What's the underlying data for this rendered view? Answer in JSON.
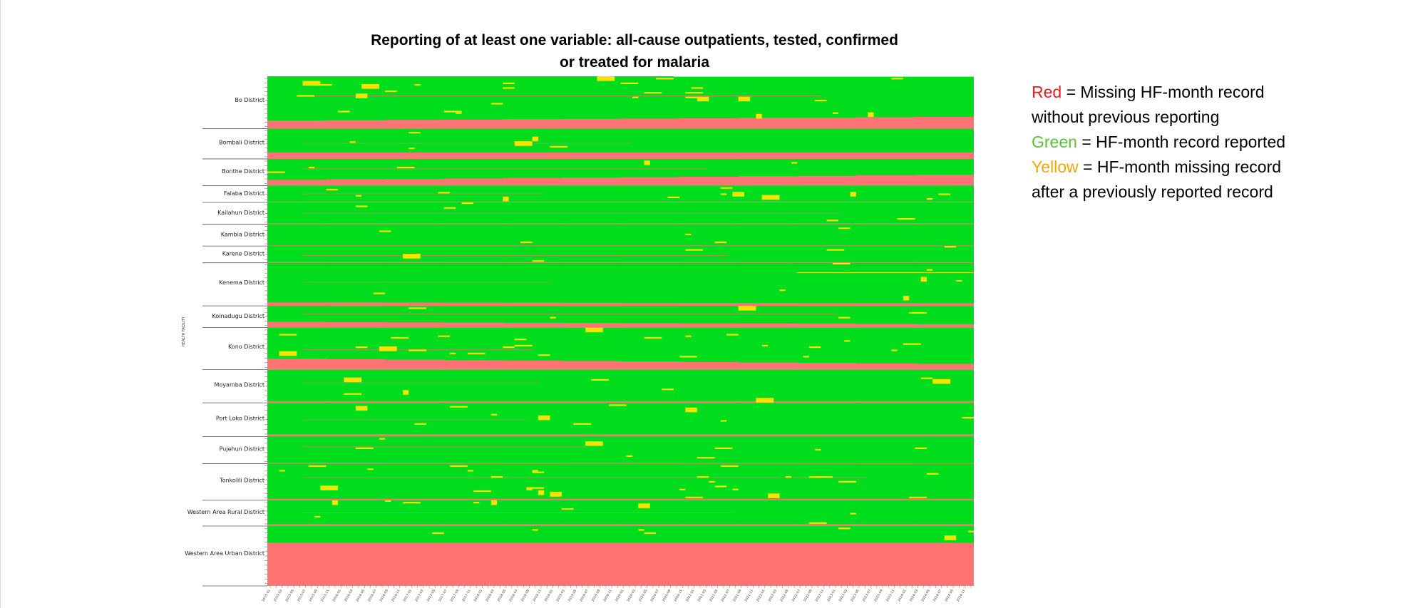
{
  "chart_data": {
    "type": "heatmap",
    "title_lines": [
      "Reporting of at least one variable: all-cause outpatients, tested, confirmed",
      "or treated for malaria"
    ],
    "ylabel": "HEALTH FACILITY",
    "colors": {
      "missing_no_previous": "#ff7375",
      "reported": "#00dd1c",
      "missing_after_previous": "#f5e400"
    },
    "x_start_month": "2015-01",
    "x_end_month": "2024-12",
    "districts": [
      {
        "name": "Bo District",
        "share": 0.106,
        "red_start": 0.155,
        "red_end": 0.225,
        "yellow": 0.08
      },
      {
        "name": "Bombali District",
        "share": 0.061,
        "red_start": 0.215,
        "red_end": 0.215,
        "yellow": 0.03
      },
      {
        "name": "Bonthe District",
        "share": 0.054,
        "red_start": 0.215,
        "red_end": 0.4,
        "yellow": 0.04
      },
      {
        "name": "Falaba District",
        "share": 0.034,
        "red_start": 0.055,
        "red_end": 0.055,
        "yellow": 0.09
      },
      {
        "name": "Kailahun District",
        "share": 0.044,
        "red_start": 0.04,
        "red_end": 0.04,
        "yellow": 0.03
      },
      {
        "name": "Kambia District",
        "share": 0.044,
        "red_start": 0.02,
        "red_end": 0.02,
        "yellow": 0.03
      },
      {
        "name": "Karene District",
        "share": 0.034,
        "red_start": 0.05,
        "red_end": 0.035,
        "yellow": 0.04
      },
      {
        "name": "Kenema District",
        "share": 0.087,
        "red_start": 0.08,
        "red_end": 0.06,
        "yellow": 0.02
      },
      {
        "name": "Koinadugu District",
        "share": 0.044,
        "red_start": 0.26,
        "red_end": 0.16,
        "yellow": 0.04
      },
      {
        "name": "Kono District",
        "share": 0.085,
        "red_start": 0.26,
        "red_end": 0.14,
        "yellow": 0.09
      },
      {
        "name": "Moyamba District",
        "share": 0.067,
        "red_start": 0.05,
        "red_end": 0.05,
        "yellow": 0.03
      },
      {
        "name": "Port Loko District",
        "share": 0.068,
        "red_start": 0.07,
        "red_end": 0.07,
        "yellow": 0.04
      },
      {
        "name": "Pujehun District",
        "share": 0.055,
        "red_start": 0.04,
        "red_end": 0.02,
        "yellow": 0.04
      },
      {
        "name": "Tonkolili District",
        "share": 0.074,
        "red_start": 0.04,
        "red_end": 0.04,
        "yellow": 0.09
      },
      {
        "name": "Western Area Rural District",
        "share": 0.052,
        "red_start": 0.08,
        "red_end": 0.08,
        "yellow": 0.05
      },
      {
        "name": "Western Area Urban District",
        "share": 0.121,
        "red_start": 0.72,
        "red_end": 0.72,
        "yellow": 0.05
      }
    ]
  },
  "legend": {
    "red_key": "Red",
    "red_text_1": " = Missing HF-month record",
    "red_text_2": "without previous reporting",
    "green_key": "Green",
    "green_text": " = HF-month record reported",
    "yellow_key": "Yellow",
    "yellow_text_1": " = HF-month missing record",
    "yellow_text_2": "after a previously reported record"
  }
}
